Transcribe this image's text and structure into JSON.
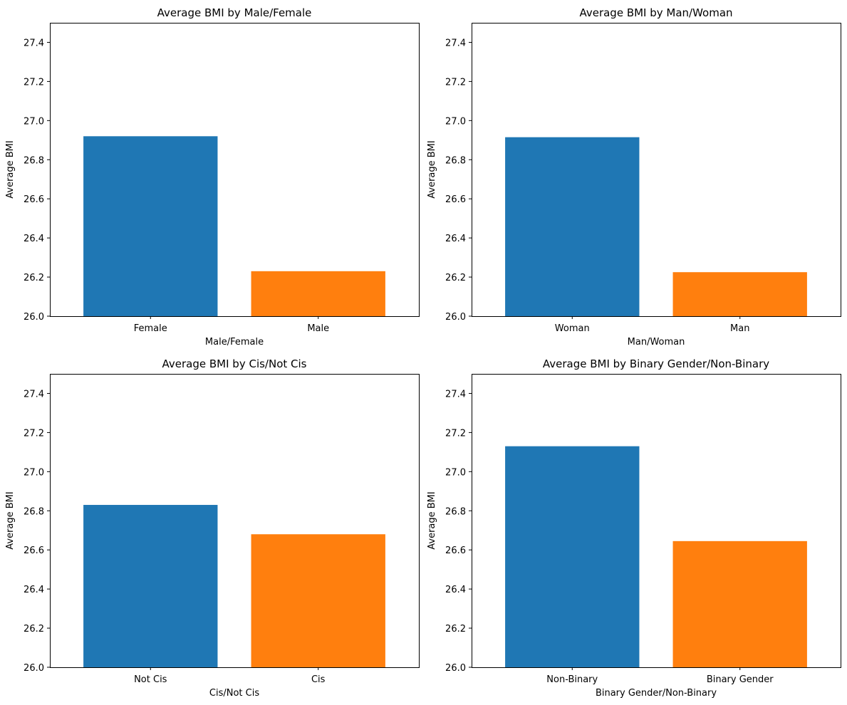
{
  "chart_data": [
    {
      "type": "bar",
      "title": "Average BMI by Male/Female",
      "xlabel": "Male/Female",
      "ylabel": "Average BMI",
      "categories": [
        "Female",
        "Male"
      ],
      "values": [
        26.92,
        26.23
      ],
      "colors": [
        "#1f77b4",
        "#ff7f0e"
      ],
      "ylim": [
        26.0,
        27.5
      ],
      "yticks": [
        "26.0",
        "26.2",
        "26.4",
        "26.6",
        "26.8",
        "27.0",
        "27.2",
        "27.4"
      ],
      "grid": false
    },
    {
      "type": "bar",
      "title": "Average BMI by Man/Woman",
      "xlabel": "Man/Woman",
      "ylabel": "Average BMI",
      "categories": [
        "Woman",
        "Man"
      ],
      "values": [
        26.915,
        26.225
      ],
      "colors": [
        "#1f77b4",
        "#ff7f0e"
      ],
      "ylim": [
        26.0,
        27.5
      ],
      "yticks": [
        "26.0",
        "26.2",
        "26.4",
        "26.6",
        "26.8",
        "27.0",
        "27.2",
        "27.4"
      ],
      "grid": false
    },
    {
      "type": "bar",
      "title": "Average BMI by Cis/Not Cis",
      "xlabel": "Cis/Not Cis",
      "ylabel": "Average BMI",
      "categories": [
        "Not Cis",
        "Cis"
      ],
      "values": [
        26.83,
        26.68
      ],
      "colors": [
        "#1f77b4",
        "#ff7f0e"
      ],
      "ylim": [
        26.0,
        27.5
      ],
      "yticks": [
        "26.0",
        "26.2",
        "26.4",
        "26.6",
        "26.8",
        "27.0",
        "27.2",
        "27.4"
      ],
      "grid": false
    },
    {
      "type": "bar",
      "title": "Average BMI by Binary Gender/Non-Binary",
      "xlabel": "Binary Gender/Non-Binary",
      "ylabel": "Average BMI",
      "categories": [
        "Non-Binary",
        "Binary Gender"
      ],
      "values": [
        27.13,
        26.645
      ],
      "colors": [
        "#1f77b4",
        "#ff7f0e"
      ],
      "ylim": [
        26.0,
        27.5
      ],
      "yticks": [
        "26.0",
        "26.2",
        "26.4",
        "26.6",
        "26.8",
        "27.0",
        "27.2",
        "27.4"
      ],
      "grid": false
    }
  ]
}
